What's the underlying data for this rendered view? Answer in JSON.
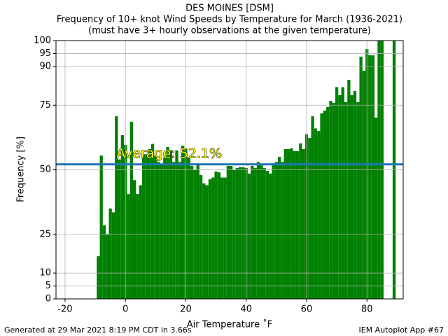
{
  "chart_data": {
    "type": "bar",
    "title": "DES MOINES [DSM]",
    "subtitle": "Frequency of 10+ knot Wind Speeds by Temperature for March (1936-2021)",
    "subtitle2": "(must have 3+ hourly observations at the given temperature)",
    "xlabel": "Air Temperature ˚F",
    "ylabel": "Frequency [%]",
    "footer_left": "Generated at 29 Mar 2021 8:19 PM CDT in 3.66s",
    "footer_right": "IEM Autoplot App #67",
    "annotation": "Average: 52.1%",
    "average": 52.1,
    "average_color": "#1f77b4",
    "color": "#008000",
    "grid": true,
    "xlim": [
      -23,
      92
    ],
    "xticks": [
      -20,
      0,
      20,
      40,
      60,
      80
    ],
    "ylim": [
      0,
      100
    ],
    "yticks": [
      0,
      5,
      10,
      25,
      50,
      75,
      90,
      95,
      100
    ],
    "x": [
      -9,
      -8,
      -7,
      -6,
      -5,
      -4,
      -3,
      -2,
      -1,
      0,
      1,
      2,
      3,
      4,
      5,
      6,
      7,
      8,
      9,
      10,
      11,
      12,
      13,
      14,
      15,
      16,
      17,
      18,
      19,
      20,
      21,
      22,
      23,
      24,
      25,
      26,
      27,
      28,
      29,
      30,
      31,
      32,
      33,
      34,
      35,
      36,
      37,
      38,
      39,
      40,
      41,
      42,
      43,
      44,
      45,
      46,
      47,
      48,
      49,
      50,
      51,
      52,
      53,
      54,
      55,
      56,
      57,
      58,
      59,
      60,
      61,
      62,
      63,
      64,
      65,
      66,
      67,
      68,
      69,
      70,
      71,
      72,
      73,
      74,
      75,
      76,
      77,
      78,
      79,
      80,
      81,
      82,
      83,
      84,
      85,
      89
    ],
    "values": [
      16.5,
      55.5,
      28.5,
      25,
      35,
      33.5,
      70.7,
      54,
      63.4,
      59.6,
      40.6,
      68.6,
      46,
      40.6,
      44,
      56,
      56,
      58,
      60,
      55.5,
      53,
      52,
      54.7,
      58.8,
      57.5,
      53,
      57.5,
      53,
      59.3,
      58,
      54.7,
      51.5,
      50,
      52.5,
      48,
      44.7,
      44,
      46.3,
      47,
      49.3,
      49,
      47,
      47,
      51.5,
      51.5,
      50,
      50.7,
      51,
      51,
      50.7,
      48.5,
      51.5,
      50.7,
      53,
      51.8,
      50.7,
      49.6,
      48.5,
      51.8,
      53,
      55,
      53,
      58,
      58,
      58.3,
      57.2,
      57.2,
      60.2,
      58,
      63.7,
      62.3,
      70.7,
      66,
      65,
      71.8,
      72.9,
      74.3,
      76.7,
      75.9,
      82,
      78.9,
      82,
      76.2,
      84.8,
      78.9,
      80.5,
      76.2,
      93.8,
      88.3,
      96.7,
      94.3,
      94.3,
      70.2,
      100,
      100,
      100
    ]
  }
}
